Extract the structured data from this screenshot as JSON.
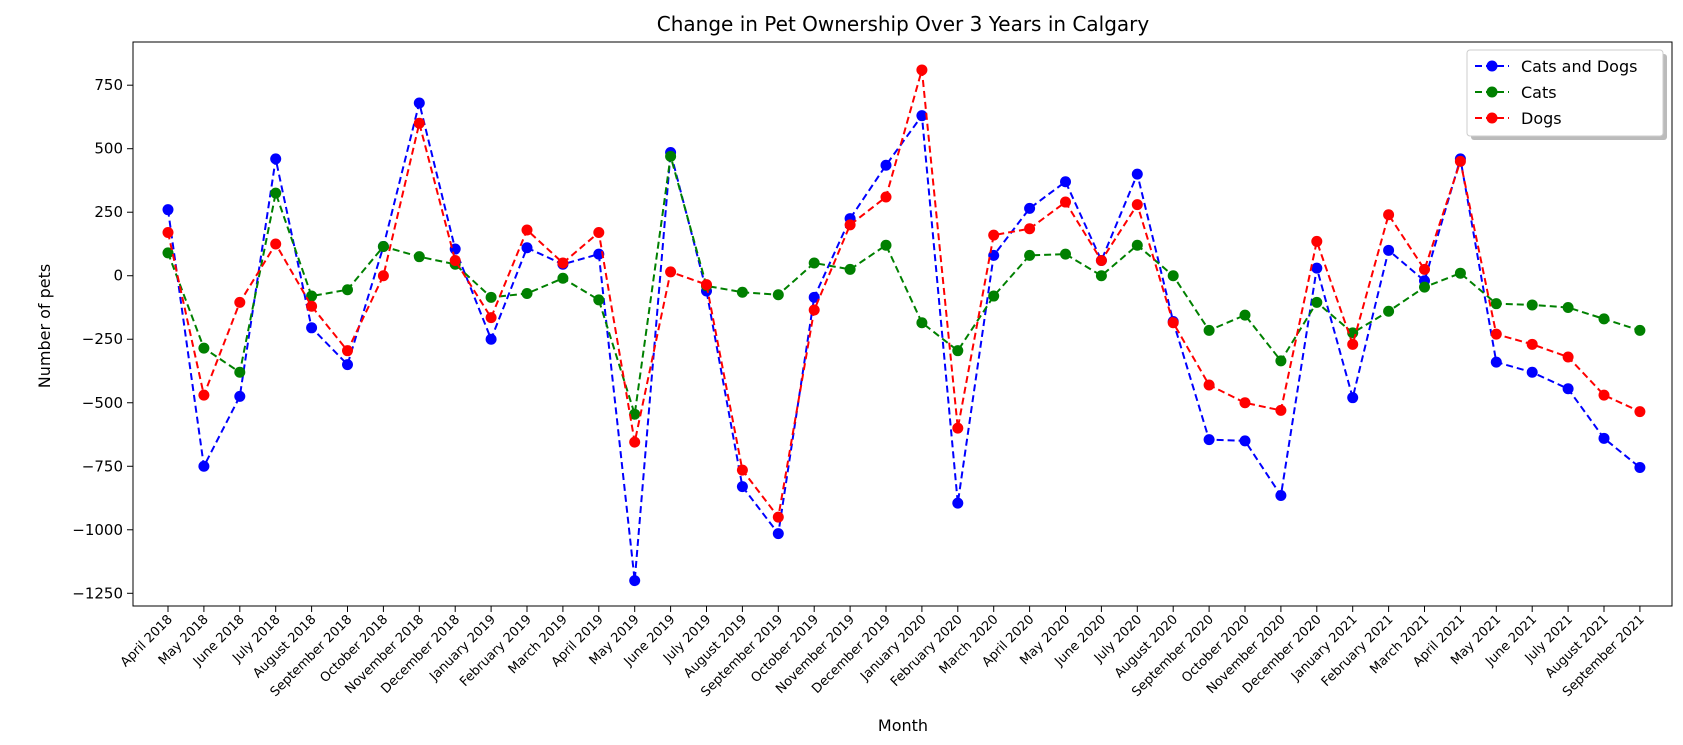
{
  "chart_data": {
    "type": "line",
    "title": "Change in Pet Ownership Over 3 Years in Calgary",
    "xlabel": "Month",
    "ylabel": "Number of pets",
    "ylim": [
      -1300,
      920
    ],
    "yticks": [
      750,
      500,
      250,
      0,
      -250,
      -500,
      -750,
      -1000,
      -1250
    ],
    "ytick_labels": [
      "750",
      "500",
      "250",
      "0",
      "−250",
      "−500",
      "−750",
      "−1000",
      "−1250"
    ],
    "grid": false,
    "legend_position": "top-right",
    "categories": [
      "April 2018",
      "May 2018",
      "June 2018",
      "July 2018",
      "August 2018",
      "September 2018",
      "October 2018",
      "November 2018",
      "December 2018",
      "January 2019",
      "February 2019",
      "March 2019",
      "April 2019",
      "May 2019",
      "June 2019",
      "July 2019",
      "August 2019",
      "September 2019",
      "October 2019",
      "November 2019",
      "December 2019",
      "January 2020",
      "February 2020",
      "March 2020",
      "April 2020",
      "May 2020",
      "June 2020",
      "July 2020",
      "August 2020",
      "September 2020",
      "October 2020",
      "November 2020",
      "December 2020",
      "January 2021",
      "February 2021",
      "March 2021",
      "April 2021",
      "May 2021",
      "June 2021",
      "July 2021",
      "August 2021",
      "September 2021"
    ],
    "series": [
      {
        "name": "Cats and Dogs",
        "color": "#0000ff",
        "values": [
          260,
          -750,
          -475,
          460,
          -205,
          -350,
          115,
          680,
          105,
          -250,
          110,
          45,
          85,
          -1200,
          485,
          -60,
          -830,
          -1015,
          -85,
          225,
          435,
          630,
          -895,
          80,
          265,
          370,
          60,
          400,
          -180,
          -645,
          -650,
          -865,
          30,
          -480,
          100,
          -20,
          460,
          -340,
          -380,
          -445,
          -640,
          -755
        ]
      },
      {
        "name": "Cats",
        "color": "#008000",
        "values": [
          90,
          -285,
          -380,
          325,
          -80,
          -55,
          115,
          75,
          45,
          -85,
          -70,
          -10,
          -95,
          -545,
          470,
          -40,
          -65,
          -75,
          50,
          25,
          120,
          -185,
          -295,
          -80,
          80,
          85,
          0,
          120,
          0,
          -215,
          -155,
          -335,
          -105,
          -225,
          -140,
          -45,
          10,
          -110,
          -115,
          -125,
          -170,
          -215
        ]
      },
      {
        "name": "Dogs",
        "color": "#ff0000",
        "values": [
          170,
          -470,
          -105,
          125,
          -120,
          -295,
          0,
          600,
          60,
          -165,
          180,
          50,
          170,
          -655,
          15,
          -35,
          -765,
          -950,
          -135,
          200,
          310,
          810,
          -600,
          160,
          185,
          290,
          60,
          280,
          -185,
          -430,
          -500,
          -530,
          135,
          -270,
          240,
          25,
          450,
          -230,
          -270,
          -320,
          -470,
          -535
        ]
      }
    ]
  }
}
